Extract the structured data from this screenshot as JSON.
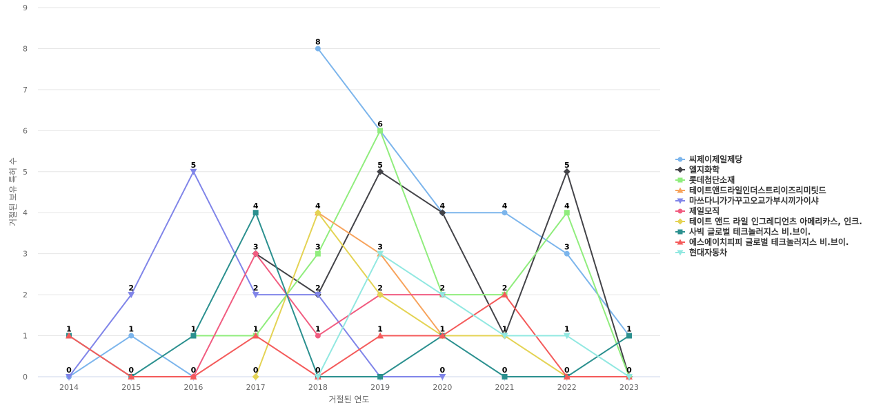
{
  "chart_data": {
    "type": "line",
    "title": "",
    "xlabel": "거절된 연도",
    "ylabel": "거절된 보유 특허 수",
    "categories": [
      "2014",
      "2015",
      "2016",
      "2017",
      "2018",
      "2019",
      "2020",
      "2021",
      "2022",
      "2023"
    ],
    "ylim": [
      0,
      9
    ],
    "yticks": [
      0,
      1,
      2,
      3,
      4,
      5,
      6,
      7,
      8,
      9
    ],
    "grid": true,
    "legend_position": "right",
    "series": [
      {
        "name": "씨제이제일제당",
        "color": "#7cb5ec",
        "marker": "circle",
        "values": [
          0,
          1,
          0,
          null,
          8,
          6,
          4,
          4,
          3,
          1
        ]
      },
      {
        "name": "엘지화학",
        "color": "#434348",
        "marker": "diamond",
        "values": [
          null,
          null,
          null,
          3,
          2,
          5,
          4,
          1,
          5,
          0
        ]
      },
      {
        "name": "롯데첨단소재",
        "color": "#90ed7d",
        "marker": "square",
        "values": [
          null,
          null,
          1,
          1,
          3,
          6,
          2,
          2,
          4,
          0
        ]
      },
      {
        "name": "테이트앤드라일인더스트리이즈리미팃드",
        "color": "#f7a35c",
        "marker": "triangle",
        "values": [
          null,
          null,
          null,
          null,
          4,
          3,
          1,
          null,
          null,
          null
        ]
      },
      {
        "name": "마쓰다니가가꾸고오교가부시끼가이샤",
        "color": "#8085e9",
        "marker": "triangle-down",
        "values": [
          0,
          2,
          5,
          2,
          2,
          0,
          0,
          null,
          null,
          null
        ]
      },
      {
        "name": "제일모직",
        "color": "#f15c80",
        "marker": "circle",
        "values": [
          null,
          null,
          0,
          3,
          1,
          2,
          2,
          null,
          null,
          null
        ]
      },
      {
        "name": "테이트 앤드 라일 인그레디언츠 아메리카스, 인크.",
        "color": "#e4d354",
        "marker": "diamond",
        "values": [
          null,
          null,
          null,
          0,
          4,
          2,
          1,
          1,
          0,
          null
        ]
      },
      {
        "name": "사빅 글로벌 테크놀러지스 비.브이.",
        "color": "#2b908f",
        "marker": "square",
        "values": [
          1,
          0,
          1,
          4,
          0,
          0,
          1,
          0,
          0,
          1
        ]
      },
      {
        "name": "에스에이치피피 글로벌 테크놀러지스 비.브이.",
        "color": "#f45b5b",
        "marker": "triangle",
        "values": [
          1,
          0,
          0,
          1,
          0,
          1,
          1,
          2,
          0,
          0
        ]
      },
      {
        "name": "현대자동차",
        "color": "#91e8e1",
        "marker": "triangle-down",
        "values": [
          null,
          null,
          null,
          null,
          0,
          3,
          2,
          1,
          1,
          0
        ]
      }
    ],
    "data_labels": [
      {
        "category": "2014",
        "text": "1",
        "value": 1
      },
      {
        "category": "2014",
        "text": "0",
        "value": 0
      },
      {
        "category": "2015",
        "text": "2",
        "value": 2
      },
      {
        "category": "2015",
        "text": "1",
        "value": 1
      },
      {
        "category": "2015",
        "text": "0",
        "value": 0
      },
      {
        "category": "2016",
        "text": "5",
        "value": 5
      },
      {
        "category": "2016",
        "text": "1",
        "value": 1
      },
      {
        "category": "2016",
        "text": "0",
        "value": 0
      },
      {
        "category": "2017",
        "text": "4",
        "value": 4
      },
      {
        "category": "2017",
        "text": "3",
        "value": 3
      },
      {
        "category": "2017",
        "text": "2",
        "value": 2
      },
      {
        "category": "2017",
        "text": "1",
        "value": 1
      },
      {
        "category": "2017",
        "text": "0",
        "value": 0
      },
      {
        "category": "2018",
        "text": "8",
        "value": 8
      },
      {
        "category": "2018",
        "text": "4",
        "value": 4
      },
      {
        "category": "2018",
        "text": "3",
        "value": 3
      },
      {
        "category": "2018",
        "text": "2",
        "value": 2
      },
      {
        "category": "2018",
        "text": "1",
        "value": 1
      },
      {
        "category": "2018",
        "text": "0",
        "value": 0
      },
      {
        "category": "2019",
        "text": "6",
        "value": 6
      },
      {
        "category": "2019",
        "text": "5",
        "value": 5
      },
      {
        "category": "2019",
        "text": "3",
        "value": 3
      },
      {
        "category": "2019",
        "text": "2",
        "value": 2
      },
      {
        "category": "2019",
        "text": "1",
        "value": 1
      },
      {
        "category": "2020",
        "text": "4",
        "value": 4
      },
      {
        "category": "2020",
        "text": "2",
        "value": 2
      },
      {
        "category": "2020",
        "text": "1",
        "value": 1
      },
      {
        "category": "2020",
        "text": "0",
        "value": 0
      },
      {
        "category": "2021",
        "text": "4",
        "value": 4
      },
      {
        "category": "2021",
        "text": "2",
        "value": 2
      },
      {
        "category": "2021",
        "text": "1",
        "value": 1
      },
      {
        "category": "2021",
        "text": "0",
        "value": 0
      },
      {
        "category": "2022",
        "text": "5",
        "value": 5
      },
      {
        "category": "2022",
        "text": "4",
        "value": 4
      },
      {
        "category": "2022",
        "text": "3",
        "value": 3
      },
      {
        "category": "2022",
        "text": "1",
        "value": 1
      },
      {
        "category": "2022",
        "text": "0",
        "value": 0
      },
      {
        "category": "2023",
        "text": "1",
        "value": 1
      },
      {
        "category": "2023",
        "text": "0",
        "value": 0
      }
    ]
  }
}
